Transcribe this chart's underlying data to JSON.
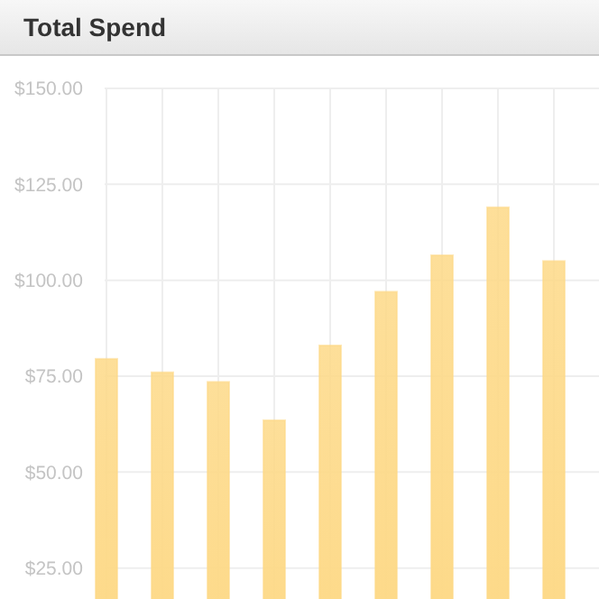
{
  "chart_data": {
    "type": "bar",
    "title": "Total Spend",
    "categories": [
      null,
      null,
      null,
      null,
      null,
      null,
      null,
      null,
      null
    ],
    "values": [
      79.5,
      76,
      73.5,
      63.5,
      83,
      97,
      106.5,
      119,
      105
    ],
    "color": "#fdd987",
    "ylim": [
      0,
      150
    ],
    "yticks": [
      {
        "value": 25,
        "label": "$25.00"
      },
      {
        "value": 50,
        "label": "$50.00"
      },
      {
        "value": 75,
        "label": "$75.00"
      },
      {
        "value": 100,
        "label": "$100.00"
      },
      {
        "value": 125,
        "label": "$125.00"
      },
      {
        "value": 150,
        "label": "$150.00"
      }
    ],
    "grid": true
  }
}
